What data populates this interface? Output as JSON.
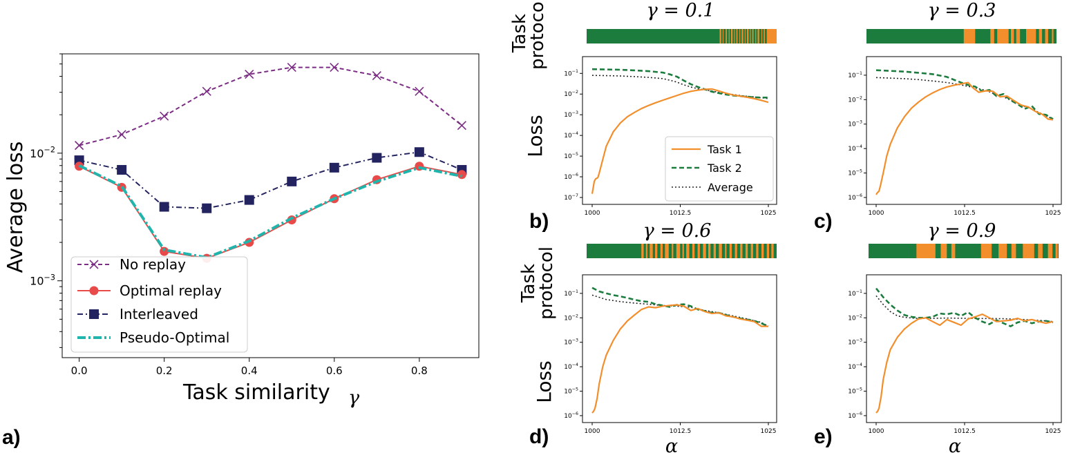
{
  "panel_labels": {
    "a": "a)",
    "b": "b)",
    "c": "c)",
    "d": "d)",
    "e": "e)"
  },
  "colors": {
    "task1": "#f28e2b",
    "task2": "#1b7c3d",
    "average": "#222222",
    "no_replay": "#7b2c83",
    "optimal": "#e84a4a",
    "interleaved": "#232360",
    "pseudo": "#1fb5ac"
  },
  "chart_data": [
    {
      "id": "a",
      "type": "line",
      "xlabel": "Task similarity",
      "xlabel_symbol": "γ",
      "ylabel": "Average loss",
      "yscale": "log",
      "xlim": [
        -0.04,
        0.94
      ],
      "ylim": [
        0.00025,
        0.06
      ],
      "x": [
        0.0,
        0.1,
        0.2,
        0.3,
        0.4,
        0.5,
        0.6,
        0.7,
        0.8,
        0.9
      ],
      "x_ticks": [
        "0.0",
        "0.2",
        "0.4",
        "0.6",
        "0.8"
      ],
      "y_ticks": [
        "10^-3",
        "10^-2"
      ],
      "legend_position": "lower-left",
      "series": [
        {
          "name": "No replay",
          "marker": "x",
          "style": "dashed",
          "values": [
            0.0115,
            0.014,
            0.0195,
            0.0305,
            0.0415,
            0.047,
            0.047,
            0.0405,
            0.0305,
            0.0165
          ]
        },
        {
          "name": "Optimal replay",
          "marker": "circle",
          "style": "solid",
          "values": [
            0.0079,
            0.0054,
            0.0017,
            0.0015,
            0.002,
            0.003,
            0.0044,
            0.0062,
            0.0079,
            0.0068
          ]
        },
        {
          "name": "Interleaved",
          "marker": "square",
          "style": "dashdot",
          "values": [
            0.0088,
            0.0074,
            0.0038,
            0.0037,
            0.0043,
            0.006,
            0.0077,
            0.0092,
            0.0102,
            0.0074
          ]
        },
        {
          "name": "Pseudo-Optimal",
          "marker": "none",
          "style": "dashdot-thick",
          "values": [
            0.008,
            0.0055,
            0.00175,
            0.00152,
            0.00205,
            0.0031,
            0.0044,
            0.006,
            0.0077,
            0.0066
          ]
        }
      ]
    },
    {
      "id": "b",
      "gamma": "γ = 0.1",
      "type": "line",
      "yscale": "log",
      "xlim": [
        1000,
        1025
      ],
      "x_ticks": [
        "1000",
        "1012.5",
        "1025"
      ],
      "ylim": [
        1e-07,
        0.3
      ],
      "y_ticks": [
        "10^-7",
        "10^-6",
        "10^-5",
        "10^-4",
        "10^-3",
        "10^-2",
        "10^-1"
      ],
      "protocol_label": "Task protocol",
      "ylabel": "Loss",
      "xlabel": "",
      "legend_position": "lower-right",
      "protocol_task1_intervals": [
        [
          17.5,
          17.7
        ],
        [
          17.9,
          18.0
        ],
        [
          18.3,
          18.45
        ],
        [
          18.7,
          18.8
        ],
        [
          19.0,
          19.2
        ],
        [
          19.4,
          19.5
        ],
        [
          19.7,
          19.85
        ],
        [
          20.1,
          20.2
        ],
        [
          20.4,
          20.6
        ],
        [
          20.8,
          20.9
        ],
        [
          21.1,
          21.3
        ],
        [
          21.5,
          21.6
        ],
        [
          21.8,
          21.95
        ],
        [
          22.2,
          22.3
        ],
        [
          22.5,
          22.7
        ],
        [
          23.0,
          23.1
        ],
        [
          23.3,
          23.45
        ],
        [
          23.7,
          25.0
        ]
      ],
      "series": [
        {
          "name": "Task 1",
          "x": [
            1000,
            1000.3,
            1000.5,
            1000.8,
            1001,
            1001.4,
            1002,
            1003,
            1004,
            1005,
            1006,
            1007,
            1008,
            1009,
            1010,
            1011,
            1012,
            1013,
            1014,
            1015,
            1016,
            1017,
            1018,
            1019,
            1020,
            1021,
            1022,
            1023,
            1024,
            1025
          ],
          "values": [
            1.5e-07,
            6e-07,
            8e-07,
            9e-07,
            1.5e-06,
            5e-06,
            3e-05,
            0.00015,
            0.0004,
            0.0008,
            0.0013,
            0.002,
            0.0028,
            0.0038,
            0.005,
            0.0065,
            0.0085,
            0.011,
            0.0135,
            0.0155,
            0.017,
            0.0175,
            0.014,
            0.011,
            0.009,
            0.008,
            0.007,
            0.006,
            0.005,
            0.004
          ]
        },
        {
          "name": "Task 2",
          "x": [
            1000,
            1002,
            1004,
            1006,
            1008,
            1010,
            1011,
            1012,
            1013,
            1014,
            1015,
            1016,
            1017,
            1018,
            1019,
            1020,
            1021,
            1022,
            1023,
            1024,
            1025
          ],
          "values": [
            0.16,
            0.155,
            0.15,
            0.14,
            0.128,
            0.11,
            0.09,
            0.07,
            0.045,
            0.03,
            0.022,
            0.017,
            0.013,
            0.011,
            0.0095,
            0.0085,
            0.008,
            0.0075,
            0.007,
            0.0068,
            0.0068
          ]
        },
        {
          "name": "Average",
          "x": [
            1000,
            1002,
            1004,
            1006,
            1008,
            1010,
            1011,
            1012,
            1013,
            1014,
            1015,
            1016,
            1017,
            1018,
            1019,
            1020,
            1021,
            1022,
            1023,
            1024,
            1025
          ],
          "values": [
            0.08,
            0.078,
            0.075,
            0.07,
            0.064,
            0.056,
            0.047,
            0.038,
            0.028,
            0.022,
            0.018,
            0.016,
            0.014,
            0.012,
            0.0105,
            0.0095,
            0.0085,
            0.0078,
            0.0072,
            0.0066,
            0.006
          ]
        }
      ]
    },
    {
      "id": "c",
      "gamma": "γ = 0.3",
      "type": "line",
      "yscale": "log",
      "xlim": [
        1000,
        1025
      ],
      "x_ticks": [
        "1000",
        "1012.5",
        "1025"
      ],
      "ylim": [
        1e-06,
        0.3
      ],
      "y_ticks": [
        "10^-6",
        "10^-5",
        "10^-4",
        "10^-3",
        "10^-2",
        "10^-1"
      ],
      "protocol_task1_intervals": [
        [
          12.8,
          14.3
        ],
        [
          16.3,
          16.8
        ],
        [
          17.2,
          18.7
        ],
        [
          19.0,
          19.4
        ],
        [
          19.7,
          20.2
        ],
        [
          21.0,
          22.3
        ],
        [
          22.7,
          23.1
        ],
        [
          23.5,
          23.9
        ],
        [
          24.4,
          24.6
        ]
      ],
      "series": [
        {
          "name": "Task 1",
          "x": [
            1000,
            1000.2,
            1000.4,
            1000.6,
            1001,
            1001.5,
            1002,
            1003,
            1004,
            1005,
            1006,
            1007,
            1008,
            1009,
            1010,
            1011,
            1012,
            1013,
            1013.7,
            1014.5,
            1015.5,
            1016.5,
            1017.5,
            1018.5,
            1019.5,
            1020.5,
            1021.5,
            1022.5,
            1023.5,
            1024.3,
            1025
          ],
          "values": [
            1.3e-06,
            1.6e-06,
            1.8e-06,
            3e-06,
            1e-05,
            5e-05,
            0.00015,
            0.0007,
            0.002,
            0.0045,
            0.008,
            0.013,
            0.019,
            0.026,
            0.033,
            0.039,
            0.044,
            0.05,
            0.03,
            0.02,
            0.023,
            0.022,
            0.013,
            0.014,
            0.009,
            0.006,
            0.005,
            0.0033,
            0.0025,
            0.0016,
            0.0015
          ]
        },
        {
          "name": "Task 2",
          "x": [
            1000,
            1002,
            1004,
            1006,
            1008,
            1010,
            1011,
            1012,
            1013,
            1014,
            1015,
            1016,
            1017,
            1018,
            1019,
            1020,
            1021,
            1022,
            1023,
            1024,
            1025
          ],
          "values": [
            0.16,
            0.15,
            0.14,
            0.125,
            0.11,
            0.085,
            0.065,
            0.05,
            0.04,
            0.034,
            0.022,
            0.025,
            0.014,
            0.017,
            0.0095,
            0.0065,
            0.0042,
            0.0055,
            0.0026,
            0.0024,
            0.0016
          ]
        },
        {
          "name": "Average",
          "x": [
            1000,
            1002,
            1004,
            1006,
            1008,
            1010,
            1011,
            1012,
            1013,
            1014,
            1015,
            1016,
            1017,
            1018,
            1019,
            1020,
            1021,
            1022,
            1023,
            1024,
            1025
          ],
          "values": [
            0.08,
            0.076,
            0.072,
            0.066,
            0.058,
            0.05,
            0.045,
            0.04,
            0.035,
            0.03,
            0.026,
            0.021,
            0.016,
            0.013,
            0.0095,
            0.007,
            0.0052,
            0.0042,
            0.003,
            0.0022,
            0.0016
          ]
        }
      ]
    },
    {
      "id": "d",
      "gamma": "γ = 0.6",
      "type": "line",
      "yscale": "log",
      "xlim": [
        1000,
        1025
      ],
      "x_ticks": [
        "1000",
        "1012.5",
        "1025"
      ],
      "ylim": [
        1e-06,
        0.3
      ],
      "y_ticks": [
        "10^-6",
        "10^-5",
        "10^-4",
        "10^-3",
        "10^-2",
        "10^-1"
      ],
      "protocol_label": "Task protocol",
      "ylabel": "Loss",
      "xlabel": "α",
      "protocol_task1_intervals": [
        [
          7.2,
          7.5
        ],
        [
          7.8,
          8.0
        ],
        [
          8.3,
          8.7
        ],
        [
          9.0,
          9.3
        ],
        [
          9.7,
          10.0
        ],
        [
          10.3,
          10.8
        ],
        [
          11.2,
          11.4
        ],
        [
          11.8,
          12.3
        ],
        [
          12.6,
          12.8
        ],
        [
          13.1,
          13.5
        ],
        [
          13.9,
          14.2
        ],
        [
          14.6,
          14.9
        ],
        [
          15.3,
          15.7
        ],
        [
          16.0,
          16.3
        ],
        [
          16.7,
          17.0
        ],
        [
          17.4,
          17.8
        ],
        [
          18.2,
          18.4
        ],
        [
          18.8,
          19.1
        ],
        [
          19.5,
          19.8
        ],
        [
          20.2,
          20.5
        ],
        [
          20.9,
          21.2
        ],
        [
          21.6,
          21.9
        ],
        [
          22.3,
          22.6
        ],
        [
          23.0,
          23.3
        ],
        [
          23.7,
          24.0
        ],
        [
          24.3,
          24.6
        ]
      ],
      "series": [
        {
          "name": "Task 1",
          "x": [
            1000,
            1000.2,
            1000.4,
            1000.7,
            1001,
            1001.5,
            1002,
            1003,
            1004,
            1005,
            1006,
            1007,
            1008,
            1009,
            1010,
            1011,
            1012,
            1013,
            1014,
            1015,
            1016,
            1017,
            1018,
            1019,
            1020,
            1021,
            1022,
            1023,
            1024,
            1025
          ],
          "values": [
            1.3e-06,
            1.5e-06,
            2e-06,
            5e-06,
            2e-05,
            0.0001,
            0.0003,
            0.0012,
            0.0035,
            0.0075,
            0.013,
            0.022,
            0.028,
            0.026,
            0.03,
            0.032,
            0.034,
            0.03,
            0.02,
            0.024,
            0.018,
            0.015,
            0.016,
            0.012,
            0.011,
            0.009,
            0.008,
            0.007,
            0.0045,
            0.0045
          ]
        },
        {
          "name": "Task 2",
          "x": [
            1000,
            1001,
            1002,
            1003,
            1004,
            1005,
            1006,
            1007,
            1008,
            1009,
            1010,
            1011,
            1012,
            1013,
            1014,
            1015,
            1016,
            1017,
            1018,
            1019,
            1020,
            1021,
            1022,
            1023,
            1024,
            1025
          ],
          "values": [
            0.17,
            0.12,
            0.1,
            0.085,
            0.075,
            0.065,
            0.055,
            0.048,
            0.045,
            0.036,
            0.032,
            0.028,
            0.034,
            0.036,
            0.03,
            0.022,
            0.019,
            0.016,
            0.016,
            0.013,
            0.011,
            0.0095,
            0.0085,
            0.0075,
            0.006,
            0.0045
          ]
        },
        {
          "name": "Average",
          "x": [
            1000,
            1002,
            1004,
            1006,
            1008,
            1010,
            1012,
            1014,
            1016,
            1018,
            1020,
            1022,
            1024,
            1025
          ],
          "values": [
            0.085,
            0.056,
            0.046,
            0.04,
            0.036,
            0.032,
            0.03,
            0.027,
            0.02,
            0.016,
            0.012,
            0.009,
            0.0065,
            0.0045
          ]
        }
      ]
    },
    {
      "id": "e",
      "gamma": "γ = 0.9",
      "type": "line",
      "yscale": "log",
      "xlim": [
        1000,
        1025
      ],
      "x_ticks": [
        "1000",
        "1012.5",
        "1025"
      ],
      "ylim": [
        1e-06,
        0.3
      ],
      "y_ticks": [
        "10^-6",
        "10^-5",
        "10^-4",
        "10^-3",
        "10^-2",
        "10^-1"
      ],
      "xlabel": "α",
      "protocol_task1_intervals": [
        [
          6.3,
          8.8
        ],
        [
          9.5,
          10.3
        ],
        [
          10.9,
          11.4
        ],
        [
          14.8,
          16.2
        ],
        [
          17.1,
          18.2
        ],
        [
          18.8,
          19.4
        ],
        [
          20.3,
          21.8
        ],
        [
          22.3,
          22.9
        ],
        [
          23.6,
          24.2
        ],
        [
          24.6,
          24.9
        ]
      ],
      "series": [
        {
          "name": "Task 1",
          "x": [
            1000,
            1000.2,
            1000.4,
            1000.7,
            1001,
            1001.5,
            1002,
            1003,
            1004,
            1005,
            1006,
            1007,
            1008,
            1009,
            1010,
            1011,
            1012,
            1013,
            1014,
            1015,
            1016,
            1017,
            1018,
            1019,
            1020,
            1021,
            1022,
            1023,
            1024,
            1025
          ],
          "values": [
            1.3e-06,
            1.5e-06,
            2e-06,
            6e-06,
            3e-05,
            0.00015,
            0.0005,
            0.0016,
            0.0035,
            0.006,
            0.009,
            0.01,
            0.007,
            0.005,
            0.0085,
            0.0065,
            0.005,
            0.009,
            0.011,
            0.014,
            0.01,
            0.007,
            0.0075,
            0.008,
            0.0095,
            0.0075,
            0.0085,
            0.007,
            0.006,
            0.007
          ]
        },
        {
          "name": "Task 2",
          "x": [
            1000,
            1001,
            1002,
            1003,
            1004,
            1005,
            1006,
            1007,
            1008,
            1009,
            1010,
            1011,
            1012,
            1013,
            1014,
            1015,
            1016,
            1017,
            1018,
            1019,
            1020,
            1021,
            1022,
            1023,
            1024,
            1025
          ],
          "values": [
            0.16,
            0.07,
            0.035,
            0.02,
            0.013,
            0.011,
            0.01,
            0.01,
            0.011,
            0.015,
            0.014,
            0.016,
            0.012,
            0.017,
            0.01,
            0.007,
            0.0055,
            0.008,
            0.006,
            0.0045,
            0.0065,
            0.0075,
            0.006,
            0.007,
            0.0075,
            0.0065
          ]
        },
        {
          "name": "Average",
          "x": [
            1000,
            1001,
            1002,
            1003,
            1004,
            1005,
            1006,
            1008,
            1010,
            1012,
            1014,
            1016,
            1018,
            1020,
            1022,
            1024,
            1025
          ],
          "values": [
            0.08,
            0.035,
            0.018,
            0.012,
            0.0105,
            0.0098,
            0.0095,
            0.0095,
            0.0098,
            0.0096,
            0.0094,
            0.0094,
            0.0092,
            0.0088,
            0.0082,
            0.0075,
            0.007
          ]
        }
      ]
    }
  ]
}
